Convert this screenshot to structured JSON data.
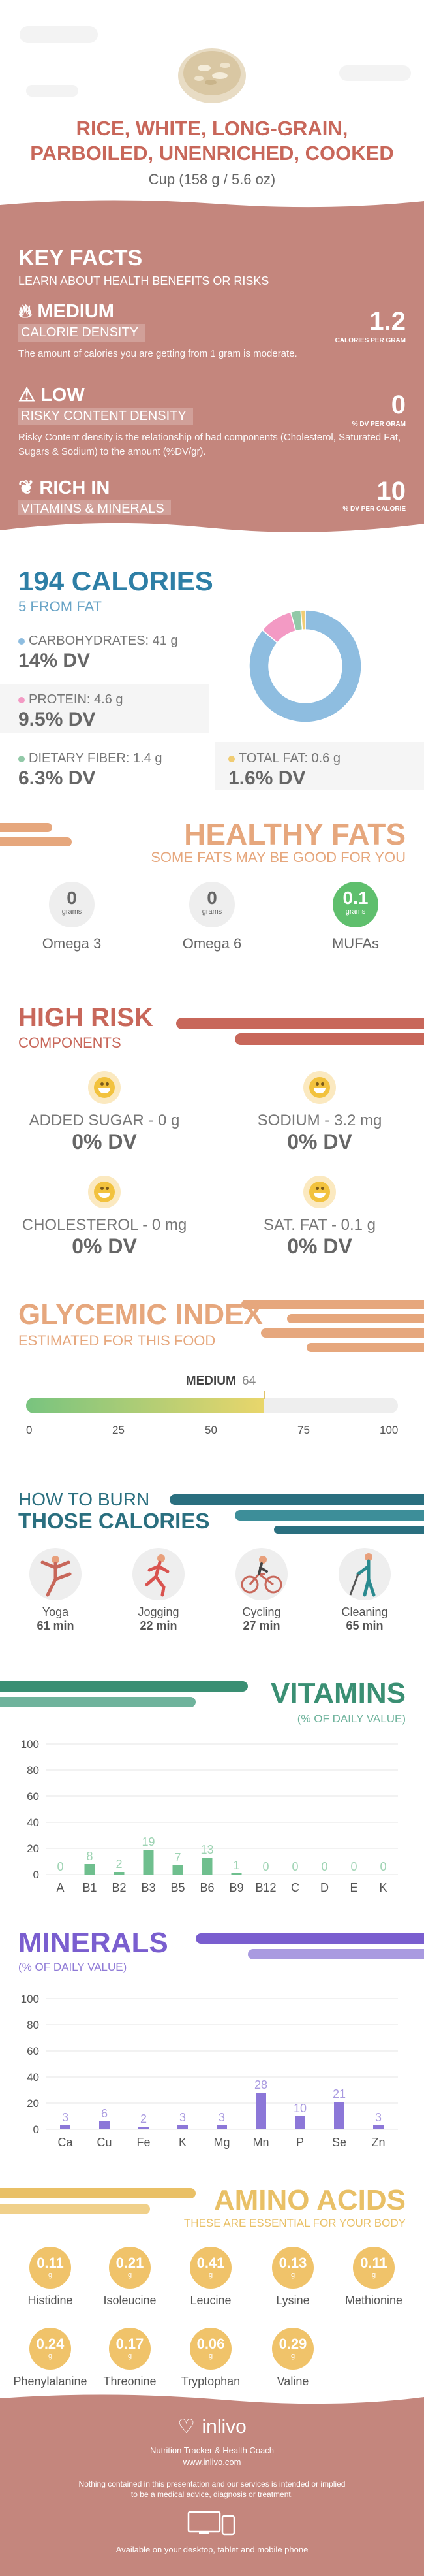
{
  "header": {
    "title_line1": "RICE, WHITE, LONG-GRAIN,",
    "title_line2": "PARBOILED, UNENRICHED, COOKED",
    "serving": "Cup (158 g / 5.6 oz)"
  },
  "key_facts": {
    "title": "KEY FACTS",
    "subtitle": "LEARN ABOUT HEALTH BENEFITS OR RISKS",
    "items": [
      {
        "tag": "MEDIUM",
        "label": "CALORIE DENSITY",
        "value": "1.2",
        "unit": "CALORIES PER GRAM",
        "desc": "The amount of calories you are getting from 1 gram is moderate.",
        "icon": "flame-icon"
      },
      {
        "tag": "LOW",
        "label": "RISKY CONTENT DENSITY",
        "value": "0",
        "unit": "% DV PER GRAM",
        "desc": "Risky Content density is the relationship of bad components (Cholesterol, Saturated Fat, Sugars & Sodium) to the amount (%DV/gr).",
        "icon": "warning-icon"
      },
      {
        "tag": "RICH IN",
        "label": "VITAMINS & MINERALS",
        "value": "10",
        "unit": "% DV PER CALORIE",
        "desc": "",
        "icon": "leaf-icon"
      }
    ]
  },
  "calories": {
    "title": "194 CALORIES",
    "subtitle": "5 FROM FAT",
    "nutrients": [
      {
        "label": "CARBOHYDRATES: 41 g",
        "dv": "14% DV",
        "color": "#8ebde0"
      },
      {
        "label": "PROTEIN: 4.6 g",
        "dv": "9.5% DV",
        "color": "#f39ac4"
      },
      {
        "label": "DIETARY FIBER: 1.4 g",
        "dv": "6.3% DV",
        "color": "#92c9a8"
      },
      {
        "label": "TOTAL FAT: 0.6 g",
        "dv": "1.6% DV",
        "color": "#f0cc73"
      }
    ],
    "donut": [
      {
        "name": "carbohydrates",
        "value": 41,
        "color": "#8ebde0"
      },
      {
        "name": "protein",
        "value": 4.6,
        "color": "#f39ac4"
      },
      {
        "name": "fiber",
        "value": 1.4,
        "color": "#92c9a8"
      },
      {
        "name": "fat",
        "value": 0.6,
        "color": "#f0cc73"
      }
    ]
  },
  "fats": {
    "title": "HEALTHY FATS",
    "subtitle": "SOME FATS MAY BE GOOD FOR YOU",
    "items": [
      {
        "value": "0",
        "unit": "grams",
        "name": "Omega 3"
      },
      {
        "value": "0",
        "unit": "grams",
        "name": "Omega 6"
      },
      {
        "value": "0.1",
        "unit": "grams",
        "name": "MUFAs"
      }
    ]
  },
  "high_risk": {
    "title": "HIGH RISK",
    "subtitle": "COMPONENTS",
    "items": [
      {
        "label": "ADDED SUGAR - 0 g",
        "dv": "0% DV"
      },
      {
        "label": "SODIUM - 3.2 mg",
        "dv": "0% DV"
      },
      {
        "label": "CHOLESTEROL - 0 mg",
        "dv": "0% DV"
      },
      {
        "label": "SAT. FAT - 0.1 g",
        "dv": "0% DV"
      }
    ]
  },
  "glycemic": {
    "title": "GLYCEMIC INDEX",
    "subtitle": "ESTIMATED FOR THIS FOOD",
    "level": "MEDIUM",
    "value": 64,
    "value_label": "64",
    "ticks": [
      "0",
      "25",
      "50",
      "75",
      "100"
    ]
  },
  "burn": {
    "title1": "HOW TO BURN",
    "title2": "THOSE CALORIES",
    "activities": [
      {
        "name": "Yoga",
        "minutes": "61 min",
        "icon": "yoga-icon"
      },
      {
        "name": "Jogging",
        "minutes": "22 min",
        "icon": "jogging-icon"
      },
      {
        "name": "Cycling",
        "minutes": "27 min",
        "icon": "cycling-icon"
      },
      {
        "name": "Cleaning",
        "minutes": "65 min",
        "icon": "cleaning-icon"
      }
    ]
  },
  "vitamins": {
    "title": "VITAMINS",
    "subtitle": "(% OF DAILY VALUE)",
    "chart_data": {
      "type": "bar",
      "categories": [
        "A",
        "B1",
        "B2",
        "B3",
        "B5",
        "B6",
        "B9",
        "B12",
        "C",
        "D",
        "E",
        "K"
      ],
      "values": [
        0,
        8,
        2,
        19,
        7,
        13,
        1,
        0,
        0,
        0,
        0,
        0
      ],
      "value_labels": [
        "0",
        "8",
        "2",
        "19",
        "7",
        "13",
        "1",
        "0",
        "0",
        "0",
        "0",
        "0"
      ],
      "ylim": [
        0,
        100
      ],
      "yticks": [
        "0",
        "20",
        "40",
        "60",
        "80",
        "100"
      ],
      "color": "#6fbf8e",
      "label_color": "#9fd4b4"
    }
  },
  "minerals": {
    "title": "MINERALS",
    "subtitle": "(% OF DAILY VALUE)",
    "chart_data": {
      "type": "bar",
      "categories": [
        "Ca",
        "Cu",
        "Fe",
        "K",
        "Mg",
        "Mn",
        "P",
        "Se",
        "Zn"
      ],
      "values": [
        3,
        6,
        2,
        3,
        3,
        28,
        10,
        21,
        3
      ],
      "value_labels": [
        "3",
        "6",
        "2",
        "3",
        "3",
        "28",
        "10",
        "21",
        "3"
      ],
      "ylim": [
        0,
        100
      ],
      "yticks": [
        "0",
        "20",
        "40",
        "60",
        "80",
        "100"
      ],
      "color": "#8c77d8",
      "label_color": "#a99ae0"
    }
  },
  "amino": {
    "title": "AMINO ACIDS",
    "subtitle": "THESE ARE ESSENTIAL FOR YOUR BODY",
    "unit": "g",
    "items": [
      {
        "value": "0.11",
        "name": "Histidine"
      },
      {
        "value": "0.21",
        "name": "Isoleucine"
      },
      {
        "value": "0.41",
        "name": "Leucine"
      },
      {
        "value": "0.13",
        "name": "Lysine"
      },
      {
        "value": "0.11",
        "name": "Methionine"
      },
      {
        "value": "0.24",
        "name": "Phenylalanine"
      },
      {
        "value": "0.17",
        "name": "Threonine"
      },
      {
        "value": "0.06",
        "name": "Tryptophan"
      },
      {
        "value": "0.29",
        "name": "Valine"
      }
    ]
  },
  "footer": {
    "brand": "inlivo",
    "tagline": "Nutrition Tracker & Health Coach",
    "url": "www.inlivo.com",
    "disclaimer1": "Nothing contained in this presentation and our services is intended or implied",
    "disclaimer2": "to be a medical advice, diagnosis or treatment.",
    "available": "Available on your desktop, tablet and mobile phone"
  }
}
